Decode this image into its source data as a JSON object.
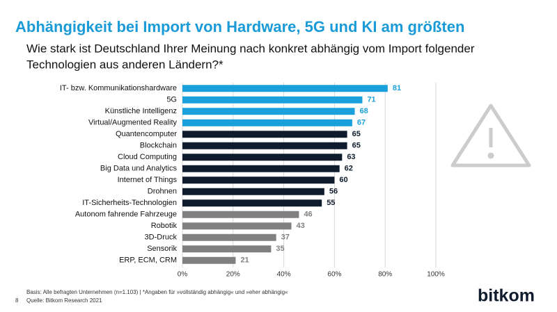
{
  "chart_data": {
    "type": "bar",
    "orientation": "horizontal",
    "title": "Abhängigkeit bei Import von Hardware, 5G und KI am größten",
    "subtitle": [
      "Wie stark ist Deutschland Ihrer Meinung nach konkret abhängig vom Import folgender",
      "Technologien aus anderen Ländern?*"
    ],
    "categories": [
      "IT- bzw. Kommunikationshardware",
      "5G",
      "Künstliche Intelligenz",
      "Virtual/Augmented Reality",
      "Quantencomputer",
      "Blockchain",
      "Cloud Computing",
      "Big Data und Analytics",
      "Internet of Things",
      "Drohnen",
      "IT-Sicherheits-Technologien",
      "Autonom fahrende Fahrzeuge",
      "Robotik",
      "3D-Druck",
      "Sensorik",
      "ERP, ECM, CRM"
    ],
    "values": [
      81,
      71,
      68,
      67,
      65,
      65,
      63,
      62,
      60,
      56,
      55,
      46,
      43,
      37,
      35,
      21
    ],
    "colors": [
      "#1aa0dc",
      "#1aa0dc",
      "#1aa0dc",
      "#1aa0dc",
      "#0f1c2e",
      "#0f1c2e",
      "#0f1c2e",
      "#0f1c2e",
      "#0f1c2e",
      "#0f1c2e",
      "#0f1c2e",
      "#808080",
      "#808080",
      "#808080",
      "#808080",
      "#808080"
    ],
    "xlim": [
      0,
      100
    ],
    "xticks": [
      {
        "value": 0,
        "label": "0%"
      },
      {
        "value": 20,
        "label": "20%"
      },
      {
        "value": 40,
        "label": "40%"
      },
      {
        "value": 60,
        "label": "60%"
      },
      {
        "value": 80,
        "label": "80%"
      },
      {
        "value": 100,
        "label": "100%"
      }
    ],
    "grid": true,
    "footnotes": [
      "Basis: Alle befragten Unternehmen (n=1.103) | *Angaben für »vollständig abhängig« und »eher abhängig«",
      "Quelle: Bitkom Research 2021"
    ],
    "page_number": "8",
    "logo": "bitkom"
  }
}
